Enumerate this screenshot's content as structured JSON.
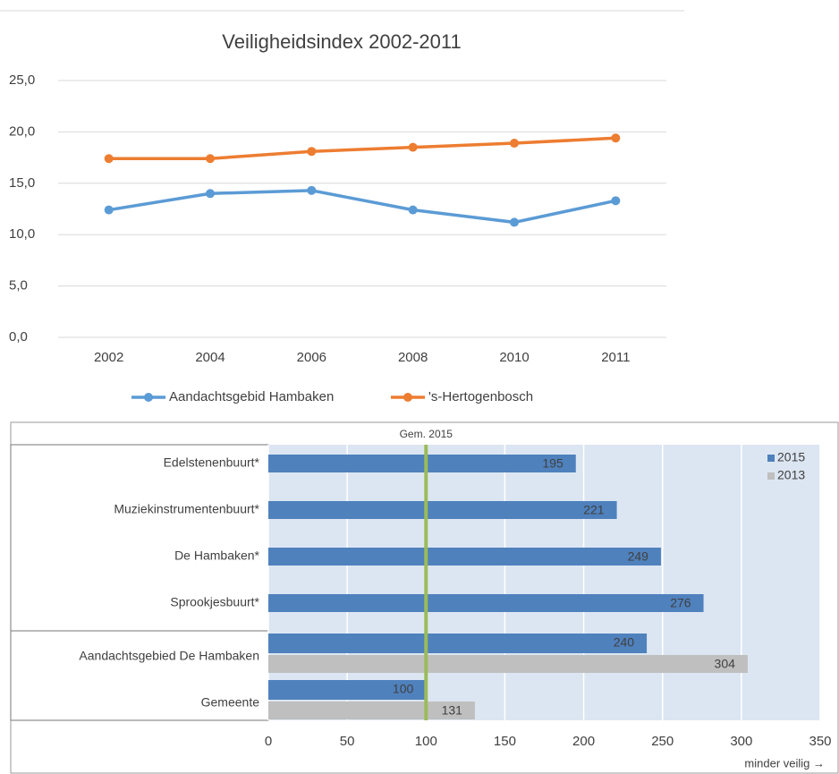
{
  "chart_data": [
    {
      "type": "line",
      "title": "Veiligheidsindex 2002-2011",
      "categories": [
        "2002",
        "2004",
        "2006",
        "2008",
        "2010",
        "2011"
      ],
      "series": [
        {
          "name": "Aandachtsgebid Hambaken",
          "color": "#5b9bd5",
          "values": [
            12.4,
            14.0,
            14.3,
            12.4,
            11.2,
            13.3
          ]
        },
        {
          "name": "'s-Hertogenbosch",
          "color": "#ed7d31",
          "values": [
            17.4,
            17.4,
            18.1,
            18.5,
            18.9,
            19.4
          ]
        }
      ],
      "ylim": [
        0,
        25
      ],
      "yticks": [
        {
          "value": 0,
          "label": "0,0"
        },
        {
          "value": 5,
          "label": "5,0"
        },
        {
          "value": 10,
          "label": "10,0"
        },
        {
          "value": 15,
          "label": "15,0"
        },
        {
          "value": 20,
          "label": "20,0"
        },
        {
          "value": 25,
          "label": "25,0"
        }
      ],
      "grid": true,
      "legend": "bottom"
    },
    {
      "type": "hbar",
      "categories": [
        "Edelstenenbuurt*",
        "Muziekinstrumentenbuurt*",
        "De Hambaken*",
        "Sprookjesbuurt*",
        "Aandachtsgebied De Hambaken",
        "Gemeente"
      ],
      "series": [
        {
          "name": "2015",
          "color": "#4f81bd",
          "values": [
            195,
            221,
            249,
            276,
            240,
            100
          ]
        },
        {
          "name": "2013",
          "color": "#bfbfbf",
          "values": [
            null,
            null,
            null,
            null,
            304,
            131
          ]
        }
      ],
      "xlim": [
        0,
        350
      ],
      "xticks": [
        0,
        50,
        100,
        150,
        200,
        250,
        300,
        350
      ],
      "reference_line": {
        "value": 100,
        "label": "Gem. 2015",
        "color": "#9bbb59"
      },
      "x_label": "minder veilig →",
      "grid": true,
      "legend": "top-right"
    }
  ]
}
